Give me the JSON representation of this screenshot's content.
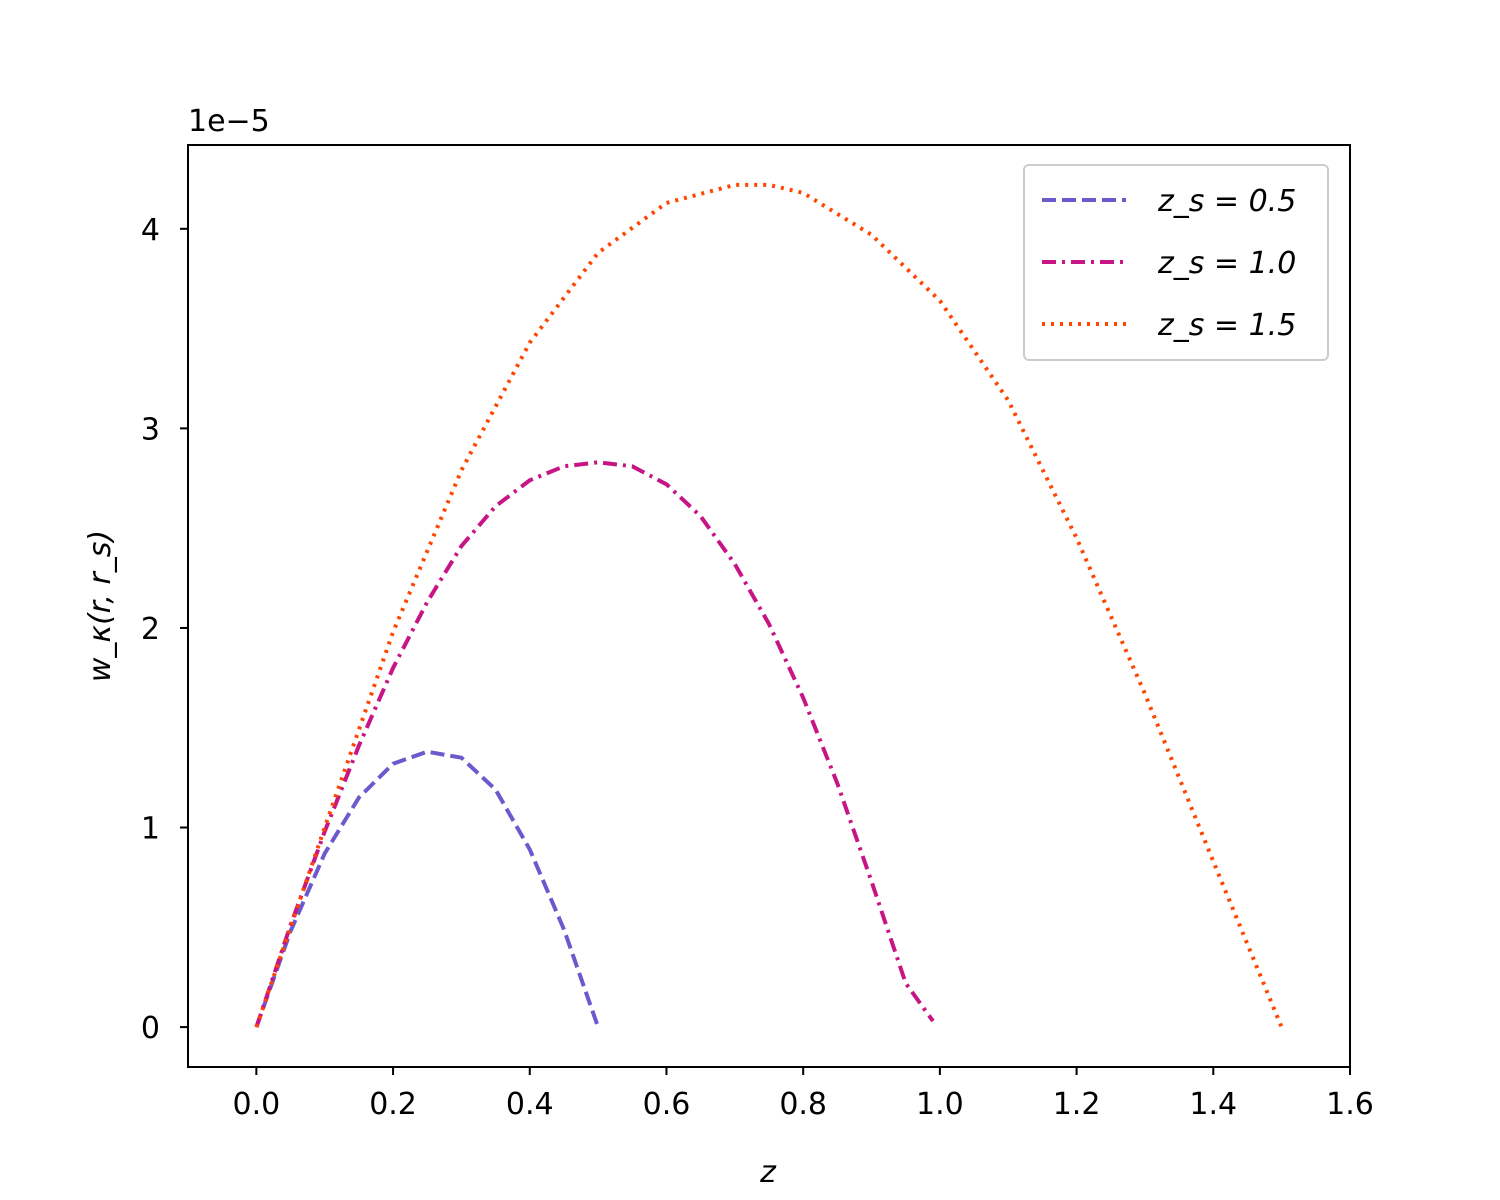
{
  "chart_data": {
    "type": "line",
    "title": "",
    "xlabel": "z",
    "ylabel": "w_κ(r, r_s)",
    "y_offset_text": "1e−5",
    "xlim": [
      -0.1,
      1.6
    ],
    "ylim": [
      -0.2,
      4.42
    ],
    "y_scale_factor": 1e-05,
    "grid": false,
    "legend_position": "top-right",
    "x_ticks": [
      {
        "value": 0.0,
        "label": "0.0"
      },
      {
        "value": 0.2,
        "label": "0.2"
      },
      {
        "value": 0.4,
        "label": "0.4"
      },
      {
        "value": 0.6,
        "label": "0.6"
      },
      {
        "value": 0.8,
        "label": "0.8"
      },
      {
        "value": 1.0,
        "label": "1.0"
      },
      {
        "value": 1.2,
        "label": "1.2"
      },
      {
        "value": 1.4,
        "label": "1.4"
      },
      {
        "value": 1.6,
        "label": "1.6"
      }
    ],
    "y_ticks": [
      {
        "value": 0,
        "label": "0"
      },
      {
        "value": 1,
        "label": "1"
      },
      {
        "value": 2,
        "label": "2"
      },
      {
        "value": 3,
        "label": "3"
      },
      {
        "value": 4,
        "label": "4"
      }
    ],
    "series": [
      {
        "name": "z_s = 0.5",
        "legend_label": "z_s = 0.5",
        "color": "#6a5acd",
        "dash": "dashed",
        "x": [
          0.0,
          0.05,
          0.1,
          0.15,
          0.2,
          0.25,
          0.3,
          0.35,
          0.4,
          0.45,
          0.5
        ],
        "y": [
          0.0,
          0.48,
          0.87,
          1.15,
          1.32,
          1.38,
          1.35,
          1.19,
          0.89,
          0.49,
          0.0
        ]
      },
      {
        "name": "z_s = 1.0",
        "legend_label": "z_s = 1.0",
        "color": "#c71585",
        "dash": "dashdot",
        "x": [
          0.0,
          0.05,
          0.1,
          0.15,
          0.2,
          0.25,
          0.3,
          0.35,
          0.4,
          0.45,
          0.5,
          0.55,
          0.6,
          0.65,
          0.7,
          0.75,
          0.8,
          0.85,
          0.9,
          0.95,
          0.99
        ],
        "y": [
          0.0,
          0.51,
          0.98,
          1.41,
          1.8,
          2.13,
          2.41,
          2.61,
          2.74,
          2.81,
          2.83,
          2.81,
          2.72,
          2.56,
          2.32,
          2.02,
          1.65,
          1.22,
          0.73,
          0.22,
          0.03
        ]
      },
      {
        "name": "z_s = 1.5",
        "legend_label": "z_s = 1.5",
        "color": "#ff4500",
        "dash": "dotted",
        "x": [
          0.0,
          0.1,
          0.2,
          0.3,
          0.4,
          0.5,
          0.6,
          0.7,
          0.75,
          0.8,
          0.9,
          1.0,
          1.1,
          1.2,
          1.3,
          1.4,
          1.5
        ],
        "y": [
          0.0,
          1.0,
          1.98,
          2.79,
          3.43,
          3.88,
          4.13,
          4.22,
          4.22,
          4.18,
          3.97,
          3.64,
          3.14,
          2.45,
          1.67,
          0.83,
          0.0
        ]
      }
    ]
  }
}
